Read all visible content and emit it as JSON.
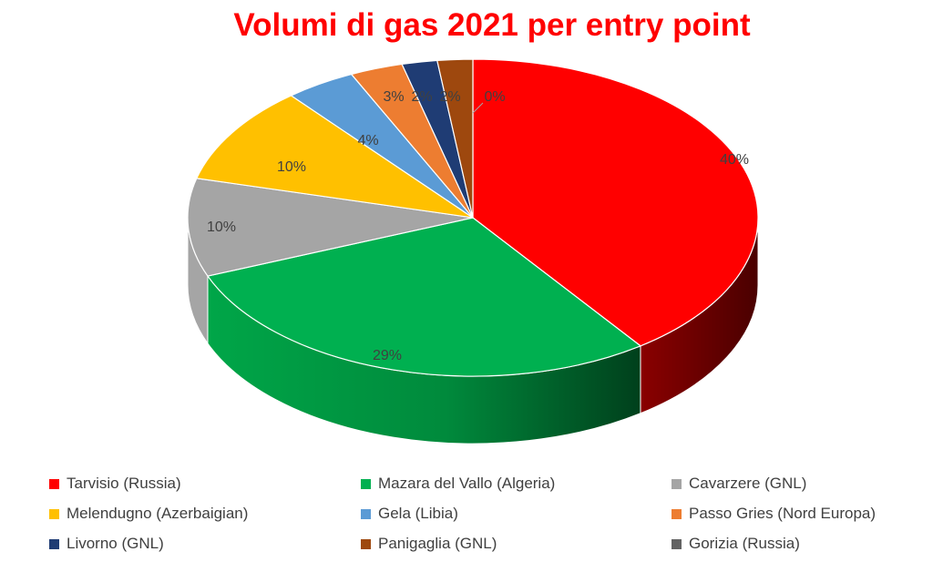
{
  "chart_data": {
    "type": "pie",
    "title": "Volumi di gas 2021 per entry point",
    "categories": [
      "Tarvisio (Russia)",
      "Mazara del Vallo (Algeria)",
      "Cavarzere (GNL)",
      "Melendugno (Azerbaigian)",
      "Gela (Libia)",
      "Passo Gries (Nord Europa)",
      "Livorno (GNL)",
      "Panigaglia (GNL)",
      "Gorizia (Russia)"
    ],
    "values": [
      40,
      29,
      10,
      10,
      4,
      3,
      2,
      2,
      0
    ],
    "data_labels": [
      "40%",
      "29%",
      "10%",
      "10%",
      "4%",
      "3%",
      "2%",
      "2%",
      "0%"
    ],
    "colors": [
      "#ff0000",
      "#00b050",
      "#a5a5a5",
      "#ffc000",
      "#5b9bd5",
      "#ed7d31",
      "#1f3c74",
      "#9e480e",
      "#636363"
    ],
    "legend_position": "bottom",
    "style": "3d-pie"
  }
}
